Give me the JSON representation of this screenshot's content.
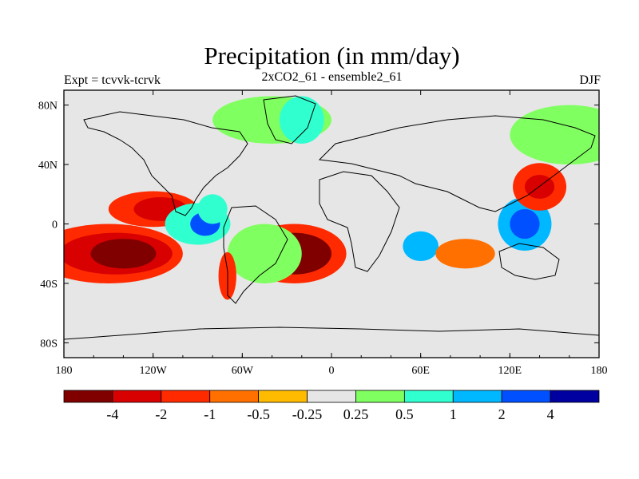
{
  "header": {
    "title": "Precipitation (in mm/day)",
    "subtitle": "2xCO2_61 - ensemble2_61",
    "left_label": "Expt = tcvvk-tcrvk",
    "right_label": "DJF"
  },
  "colors": {
    "ocean_neutral": "#e6e6e6",
    "coast": "#000000"
  },
  "map": {
    "lon_range": [
      -180,
      180
    ],
    "lat_range": [
      -90,
      90
    ],
    "lon_ticks": [
      "180",
      "120W",
      "60W",
      "0",
      "60E",
      "120E",
      "180"
    ],
    "lat_ticks": [
      "80N",
      "40N",
      "0",
      "40S",
      "80S"
    ],
    "regions": [
      {
        "level": "dry_2",
        "lon": -150,
        "lat": -20,
        "rx": 50,
        "ry": 10
      },
      {
        "level": "dry_3",
        "lon": -145,
        "lat": -20,
        "rx": 38,
        "ry": 7
      },
      {
        "level": "dry_4",
        "lon": -140,
        "lat": -20,
        "rx": 22,
        "ry": 5
      },
      {
        "level": "dry_2",
        "lon": -25,
        "lat": -20,
        "rx": 35,
        "ry": 10
      },
      {
        "level": "dry_4",
        "lon": -25,
        "lat": -20,
        "rx": 25,
        "ry": 7
      },
      {
        "level": "dry_2",
        "lon": -120,
        "lat": 10,
        "rx": 30,
        "ry": 6
      },
      {
        "level": "dry_3",
        "lon": -115,
        "lat": 10,
        "rx": 18,
        "ry": 4
      },
      {
        "level": "wet_2",
        "lon": -90,
        "lat": 0,
        "rx": 22,
        "ry": 7
      },
      {
        "level": "wet_4",
        "lon": -85,
        "lat": 0,
        "rx": 10,
        "ry": 4
      },
      {
        "level": "wet_3",
        "lon": 130,
        "lat": 0,
        "rx": 18,
        "ry": 9
      },
      {
        "level": "wet_4",
        "lon": 130,
        "lat": 0,
        "rx": 10,
        "ry": 5
      },
      {
        "level": "dry_2",
        "lon": 140,
        "lat": 25,
        "rx": 18,
        "ry": 8
      },
      {
        "level": "dry_3",
        "lon": 140,
        "lat": 25,
        "rx": 10,
        "ry": 4
      },
      {
        "level": "wet_1",
        "lon": -45,
        "lat": -20,
        "rx": 25,
        "ry": 10
      },
      {
        "level": "dry_2",
        "lon": -70,
        "lat": -35,
        "rx": 6,
        "ry": 8
      },
      {
        "level": "wet_1",
        "lon": -40,
        "lat": 70,
        "rx": 40,
        "ry": 8
      },
      {
        "level": "wet_2",
        "lon": -20,
        "lat": 70,
        "rx": 15,
        "ry": 8
      },
      {
        "level": "wet_3",
        "lon": 60,
        "lat": -15,
        "rx": 12,
        "ry": 5
      },
      {
        "level": "dry_1",
        "lon": 90,
        "lat": -20,
        "rx": 20,
        "ry": 5
      },
      {
        "level": "wet_1",
        "lon": 160,
        "lat": 60,
        "rx": 40,
        "ry": 10
      },
      {
        "level": "wet_2",
        "lon": -80,
        "lat": 10,
        "rx": 10,
        "ry": 5
      }
    ]
  },
  "colorbar": {
    "colors": [
      "#800000",
      "#d80000",
      "#ff2a00",
      "#ff7000",
      "#ffbb00",
      "#e6e6e6",
      "#80ff60",
      "#30ffd0",
      "#00b8ff",
      "#0050ff",
      "#0000a0"
    ],
    "labels": [
      "-4",
      "-2",
      "-1",
      "-0.5",
      "-0.25",
      "0.25",
      "0.5",
      "1",
      "2",
      "4"
    ]
  }
}
